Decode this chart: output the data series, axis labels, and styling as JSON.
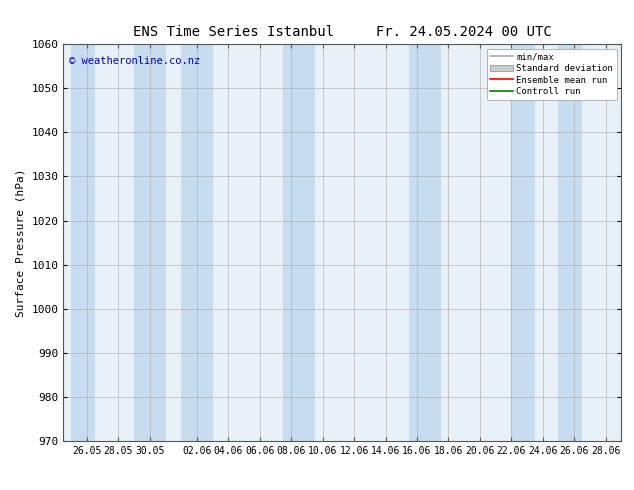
{
  "title": "ENS Time Series Istanbul",
  "title_right": "Fr. 24.05.2024 00 UTC",
  "ylabel": "Surface Pressure (hPa)",
  "ylim": [
    970,
    1060
  ],
  "yticks": [
    970,
    980,
    990,
    1000,
    1010,
    1020,
    1030,
    1040,
    1050,
    1060
  ],
  "tick_labels": [
    "26.05",
    "28.05",
    "30.05",
    "02.06",
    "04.06",
    "06.06",
    "08.06",
    "10.06",
    "12.06",
    "14.06",
    "16.06",
    "18.06",
    "20.06",
    "22.06",
    "24.06",
    "26.06",
    "28.06"
  ],
  "watermark": "© weatheronline.co.nz",
  "watermark_color": "#0000cc",
  "bg_color": "#ffffff",
  "plot_bg_color": "#e8f0f8",
  "band_color": "#c8dcf0",
  "minmax_color": "#aaaaaa",
  "stddev_color": "#cccccc",
  "mean_color": "#ff0000",
  "control_color": "#008000",
  "legend_labels": [
    "min/max",
    "Standard deviation",
    "Ensemble mean run",
    "Controll run"
  ]
}
